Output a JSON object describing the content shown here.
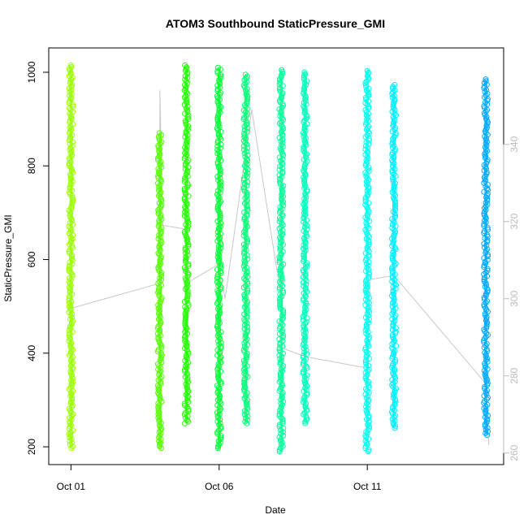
{
  "chart_data": {
    "type": "scatter",
    "title": "ATOM3 Southbound StaticPressure_GMI",
    "xlabel": "Date",
    "ylabel": "StaticPressure_GMI",
    "x_ticks": [
      {
        "label": "Oct 01",
        "value": 1
      },
      {
        "label": "Oct 06",
        "value": 6
      },
      {
        "label": "Oct 11",
        "value": 11
      }
    ],
    "xlim": [
      0.25,
      15.6
    ],
    "ylim": [
      162,
      1052
    ],
    "y_ticks": [
      200,
      400,
      600,
      800,
      1000
    ],
    "y2lim": [
      257,
      365
    ],
    "y2_ticks": [
      260,
      280,
      300,
      320,
      340
    ],
    "grid": false,
    "legend": "none",
    "marker": "open-circle",
    "bands": [
      {
        "x": 1.0,
        "y_min": 197,
        "y_max": 1015,
        "color": "#99ff00"
      },
      {
        "x": 4.0,
        "y_min": 197,
        "y_max": 870,
        "color": "#55ff00"
      },
      {
        "x": 4.9,
        "y_min": 250,
        "y_max": 1015,
        "color": "#22ff00"
      },
      {
        "x": 6.0,
        "y_min": 197,
        "y_max": 1010,
        "color": "#00ff33"
      },
      {
        "x": 6.9,
        "y_min": 250,
        "y_max": 995,
        "color": "#00ff77"
      },
      {
        "x": 8.1,
        "y_min": 190,
        "y_max": 1005,
        "color": "#00ff99"
      },
      {
        "x": 8.9,
        "y_min": 250,
        "y_max": 1000,
        "color": "#00ffbb"
      },
      {
        "x": 11.0,
        "y_min": 190,
        "y_max": 1003,
        "color": "#00ffee"
      },
      {
        "x": 11.9,
        "y_min": 240,
        "y_max": 973,
        "color": "#00eeff"
      },
      {
        "x": 15.0,
        "y_min": 225,
        "y_max": 985,
        "color": "#00aaff"
      }
    ],
    "secondary_series": {
      "color": "#c8c8c8",
      "points": [
        {
          "x": 1.0,
          "y": 297.5
        },
        {
          "x": 4.0,
          "y": 304
        },
        {
          "x": 4.0,
          "y": 354
        },
        {
          "x": 4.1,
          "y": 319
        },
        {
          "x": 4.9,
          "y": 318
        },
        {
          "x": 4.9,
          "y": 304
        },
        {
          "x": 6.0,
          "y": 309
        },
        {
          "x": 6.2,
          "y": 300
        },
        {
          "x": 7.1,
          "y": 349
        },
        {
          "x": 8.1,
          "y": 300
        },
        {
          "x": 8.2,
          "y": 287
        },
        {
          "x": 8.9,
          "y": 285
        },
        {
          "x": 11.0,
          "y": 282
        },
        {
          "x": 11.1,
          "y": 305
        },
        {
          "x": 11.9,
          "y": 306
        },
        {
          "x": 15.0,
          "y": 278
        },
        {
          "x": 15.1,
          "y": 262
        }
      ]
    }
  }
}
